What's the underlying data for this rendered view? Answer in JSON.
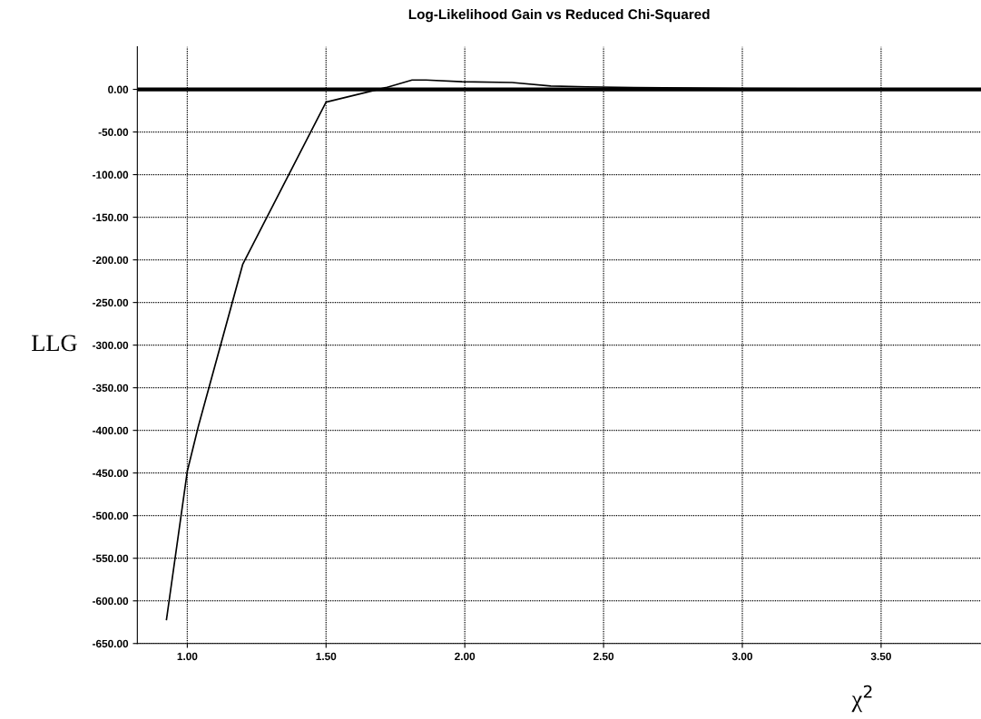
{
  "chart_data": {
    "type": "line",
    "title": "Log-Likelihood Gain vs Reduced Chi-Squared",
    "xlabel": "χ$^{2}$",
    "ylabel": "LLG",
    "x": [
      0.925,
      1.0,
      1.04,
      1.2,
      1.5,
      1.715,
      1.81,
      1.86,
      1.99,
      2.17,
      2.31,
      2.44,
      2.61,
      3.0,
      3.85
    ],
    "series": [
      {
        "color": "#000000",
        "values": [
          -622,
          -448,
          -395,
          -205,
          -15,
          2,
          11,
          11,
          9,
          8,
          4,
          3,
          2,
          1,
          0
        ]
      }
    ],
    "xlim": [
      0.82,
      3.86
    ],
    "ylim": [
      -650,
      50
    ],
    "xticks": [
      {
        "value": 1.0,
        "label": "1.00"
      },
      {
        "value": 1.5,
        "label": "1.50"
      },
      {
        "value": 2.0,
        "label": "2.00"
      },
      {
        "value": 2.5,
        "label": "2.50"
      },
      {
        "value": 3.0,
        "label": "3.00"
      },
      {
        "value": 3.5,
        "label": "3.50"
      }
    ],
    "yticks": [
      {
        "value": 0,
        "label": "0.00"
      },
      {
        "value": -50,
        "label": "-50.00"
      },
      {
        "value": -100,
        "label": "-100.00"
      },
      {
        "value": -150,
        "label": "-150.00"
      },
      {
        "value": -200,
        "label": "-200.00"
      },
      {
        "value": -250,
        "label": "-250.00"
      },
      {
        "value": -300,
        "label": "-300.00"
      },
      {
        "value": -350,
        "label": "-350.00"
      },
      {
        "value": -400,
        "label": "-400.00"
      },
      {
        "value": -450,
        "label": "-450.00"
      },
      {
        "value": -500,
        "label": "-500.00"
      },
      {
        "value": -550,
        "label": "-550.00"
      },
      {
        "value": -600,
        "label": "-600.00"
      },
      {
        "value": -650,
        "label": "-650.00"
      }
    ],
    "ref_lines": [
      {
        "axis": "y",
        "value": 0,
        "color": "#000000"
      }
    ],
    "grid": true,
    "marker": "none",
    "line_style": "solid"
  }
}
